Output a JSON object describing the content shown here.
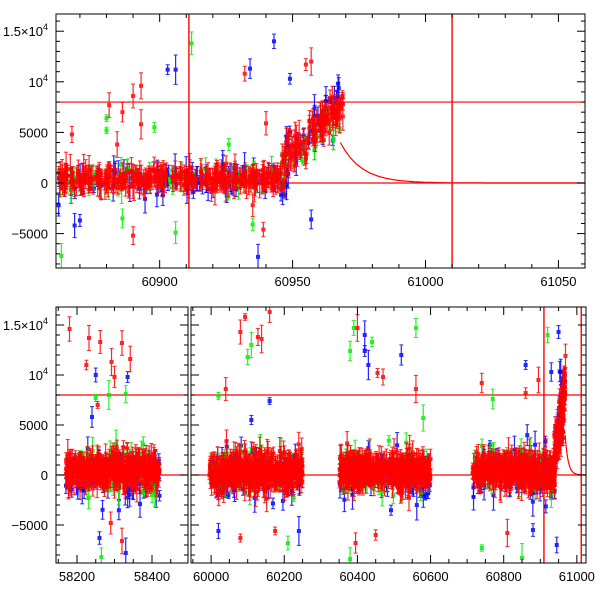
{
  "chart_data": [
    {
      "type": "scatter",
      "title": "",
      "xlabel": "",
      "ylabel": "",
      "segments": [
        {
          "xlim": [
            60861,
            61060
          ]
        }
      ],
      "ylim": [
        -8400,
        16700
      ],
      "xticks": [
        {
          "value": 60900,
          "label": "60900"
        },
        {
          "value": 60950,
          "label": "60950"
        },
        {
          "value": 61000,
          "label": "61000"
        },
        {
          "value": 61050,
          "label": "61050"
        }
      ],
      "x_minor_step": 10,
      "yticks": [
        {
          "value": -5000,
          "label": "−5000"
        },
        {
          "value": 0,
          "label": "0"
        },
        {
          "value": 5000,
          "label": "5000"
        },
        {
          "value": 10000,
          "label": "10",
          "sup": "4"
        },
        {
          "value": 15000,
          "label": "1.5×10",
          "sup": "4"
        }
      ],
      "y_minor_step": 1000,
      "hlines": [
        0,
        8000
      ],
      "vlines": [
        60911,
        61010
      ],
      "model_curve": {
        "start_x": 60968,
        "start_y": 4000,
        "decay_days": 8,
        "color": "#ff0000"
      },
      "series": [
        {
          "name": "blue",
          "color": "#0000ff",
          "clusters": [
            {
              "x": [
                60862,
                60948
              ],
              "y": [
                300,
                300
              ],
              "sd": 900,
              "n": 110
            },
            {
              "x": [
                60947,
                60968
              ],
              "y": [
                2500,
                8500
              ],
              "sd": 1300,
              "n": 40
            }
          ],
          "outliers": [
            [
              60903,
              11200
            ],
            [
              60934,
              11300
            ],
            [
              60943,
              14000
            ],
            [
              60937,
              -7300
            ],
            [
              60957,
              -3600
            ],
            [
              60949,
              10300
            ],
            [
              60868,
              -4200
            ],
            [
              60870,
              -3700
            ],
            [
              60932,
              1200
            ],
            [
              60906,
              11200
            ],
            [
              60862,
              -2200
            ]
          ]
        },
        {
          "name": "green",
          "color": "#00ee00",
          "clusters": [
            {
              "x": [
                60862,
                60948
              ],
              "y": [
                400,
                400
              ],
              "sd": 700,
              "n": 60
            },
            {
              "x": [
                60947,
                60968
              ],
              "y": [
                2000,
                5500
              ],
              "sd": 900,
              "n": 18
            }
          ],
          "outliers": [
            [
              60912,
              13800
            ],
            [
              60880,
              6400
            ],
            [
              60880,
              5200
            ],
            [
              60898,
              5500
            ],
            [
              60935,
              -4100
            ],
            [
              60863,
              -7200
            ],
            [
              60886,
              -3500
            ],
            [
              60906,
              -4900
            ],
            [
              60926,
              3800
            ],
            [
              60946,
              2000
            ]
          ]
        },
        {
          "name": "red",
          "color": "#ff0000",
          "clusters": [
            {
              "x": [
                60862,
                60948
              ],
              "y": [
                400,
                400
              ],
              "sd": 550,
              "n": 320
            },
            {
              "x": [
                60946,
                60969
              ],
              "y": [
                2000,
                7800
              ],
              "sd": 1000,
              "n": 110
            }
          ],
          "outliers": [
            [
              60867,
              4800
            ],
            [
              60881,
              7700
            ],
            [
              60886,
              7000
            ],
            [
              60890,
              8600
            ],
            [
              60893,
              9600
            ],
            [
              60884,
              3800
            ],
            [
              60893,
              5800
            ],
            [
              60890,
              -5200
            ],
            [
              60932,
              10800
            ],
            [
              60939,
              -4600
            ],
            [
              60940,
              5900
            ],
            [
              60955,
              11700
            ],
            [
              60957,
              12000
            ],
            [
              60935,
              -2200
            ]
          ]
        }
      ]
    },
    {
      "type": "scatter",
      "title": "",
      "xlabel": "",
      "ylabel": "",
      "segments": [
        {
          "xlim": [
            58144,
            58496
          ]
        },
        {
          "xlim": [
            59945,
            61025
          ]
        }
      ],
      "ylim": [
        -8800,
        16800
      ],
      "xticks": [
        {
          "segment": 0,
          "value": 58200,
          "label": "58200"
        },
        {
          "segment": 0,
          "value": 58400,
          "label": "58400"
        },
        {
          "segment": 1,
          "value": 60000,
          "label": "60000"
        },
        {
          "segment": 1,
          "value": 60200,
          "label": "60200"
        },
        {
          "segment": 1,
          "value": 60400,
          "label": "60400"
        },
        {
          "segment": 1,
          "value": 60600,
          "label": "60600"
        },
        {
          "segment": 1,
          "value": 60800,
          "label": "60800"
        },
        {
          "segment": 1,
          "value": 61000,
          "label": "61000"
        }
      ],
      "x_minor_step": 50,
      "yticks": [
        {
          "value": -5000,
          "label": "−5000"
        },
        {
          "value": 0,
          "label": "0"
        },
        {
          "value": 5000,
          "label": "5000"
        },
        {
          "value": 10000,
          "label": "10",
          "sup": "4"
        },
        {
          "value": 15000,
          "label": "1.5×10",
          "sup": "4"
        }
      ],
      "y_minor_step": 1000,
      "hlines": [
        0,
        8000
      ],
      "vlines": [
        60910,
        61012
      ],
      "model_curve": {
        "start_x": 60968,
        "start_y": 4000,
        "decay_days": 8,
        "color": "#ff0000"
      },
      "series": [
        {
          "name": "blue",
          "color": "#0000ff",
          "clusters": [
            {
              "x": [
                58170,
                58420
              ],
              "y": [
                0,
                0
              ],
              "sd": 1300,
              "n": 90
            },
            {
              "x": [
                59995,
                60250
              ],
              "y": [
                0,
                0
              ],
              "sd": 1400,
              "n": 90
            },
            {
              "x": [
                60350,
                60600
              ],
              "y": [
                0,
                0
              ],
              "sd": 1400,
              "n": 90
            },
            {
              "x": [
                60715,
                60940
              ],
              "y": [
                0,
                0
              ],
              "sd": 1400,
              "n": 80
            },
            {
              "x": [
                60940,
                60968
              ],
              "y": [
                3000,
                9000
              ],
              "sd": 2000,
              "n": 25
            }
          ],
          "outliers": [
            [
              58250,
              10000
            ],
            [
              58335,
              9800
            ],
            [
              58240,
              5800
            ],
            [
              58260,
              -6300
            ],
            [
              58330,
              -7800
            ],
            [
              60020,
              -5600
            ],
            [
              60110,
              5500
            ],
            [
              60160,
              7400
            ],
            [
              60240,
              -5600
            ],
            [
              60420,
              14000
            ],
            [
              60420,
              12400
            ],
            [
              60430,
              11000
            ],
            [
              60520,
              12000
            ],
            [
              60860,
              11000
            ],
            [
              60950,
              14300
            ],
            [
              60930,
              10300
            ],
            [
              60945,
              -7000
            ],
            [
              60880,
              -5500
            ]
          ]
        },
        {
          "name": "green",
          "color": "#00ee00",
          "clusters": [
            {
              "x": [
                58170,
                58420
              ],
              "y": [
                300,
                300
              ],
              "sd": 1300,
              "n": 70
            },
            {
              "x": [
                59995,
                60250
              ],
              "y": [
                300,
                300
              ],
              "sd": 1400,
              "n": 70
            },
            {
              "x": [
                60350,
                60600
              ],
              "y": [
                300,
                300
              ],
              "sd": 1400,
              "n": 70
            },
            {
              "x": [
                60715,
                60940
              ],
              "y": [
                300,
                300
              ],
              "sd": 1400,
              "n": 60
            }
          ],
          "outliers": [
            [
              58250,
              7700
            ],
            [
              58285,
              8000
            ],
            [
              58330,
              8100
            ],
            [
              58265,
              -8200
            ],
            [
              60020,
              7900
            ],
            [
              60110,
              13000
            ],
            [
              60100,
              11800
            ],
            [
              60210,
              -6800
            ],
            [
              60380,
              12400
            ],
            [
              60390,
              14700
            ],
            [
              60440,
              13300
            ],
            [
              60560,
              14700
            ],
            [
              60580,
              5700
            ],
            [
              60380,
              -8400
            ],
            [
              60920,
              14000
            ],
            [
              60740,
              -7300
            ],
            [
              60850,
              -8300
            ],
            [
              60770,
              7600
            ]
          ]
        },
        {
          "name": "red",
          "color": "#ff0000",
          "clusters": [
            {
              "x": [
                58170,
                58420
              ],
              "y": [
                500,
                500
              ],
              "sd": 800,
              "n": 450
            },
            {
              "x": [
                59995,
                60250
              ],
              "y": [
                400,
                400
              ],
              "sd": 1000,
              "n": 450
            },
            {
              "x": [
                60350,
                60600
              ],
              "y": [
                400,
                400
              ],
              "sd": 900,
              "n": 450
            },
            {
              "x": [
                60715,
                60940
              ],
              "y": [
                400,
                400
              ],
              "sd": 900,
              "n": 400
            },
            {
              "x": [
                60938,
                60969
              ],
              "y": [
                1500,
                9000
              ],
              "sd": 1800,
              "n": 90
            }
          ],
          "outliers": [
            [
              58180,
              14600
            ],
            [
              58232,
              13700
            ],
            [
              58225,
              11000
            ],
            [
              58262,
              13300
            ],
            [
              58292,
              11300
            ],
            [
              58320,
              13200
            ],
            [
              58342,
              11600
            ],
            [
              58300,
              9800
            ],
            [
              58255,
              7000
            ],
            [
              58320,
              -6600
            ],
            [
              58290,
              -4800
            ],
            [
              60080,
              14300
            ],
            [
              60093,
              15800
            ],
            [
              60160,
              16300
            ],
            [
              60128,
              13800
            ],
            [
              60138,
              13600
            ],
            [
              60040,
              8600
            ],
            [
              60080,
              -6300
            ],
            [
              60175,
              -5600
            ],
            [
              60400,
              14700
            ],
            [
              60455,
              10200
            ],
            [
              60470,
              9800
            ],
            [
              60560,
              8600
            ],
            [
              60740,
              9200
            ],
            [
              60810,
              -5800
            ],
            [
              60860,
              8200
            ],
            [
              60895,
              9500
            ],
            [
              60395,
              -6800
            ],
            [
              60450,
              -6000
            ]
          ]
        }
      ]
    }
  ]
}
